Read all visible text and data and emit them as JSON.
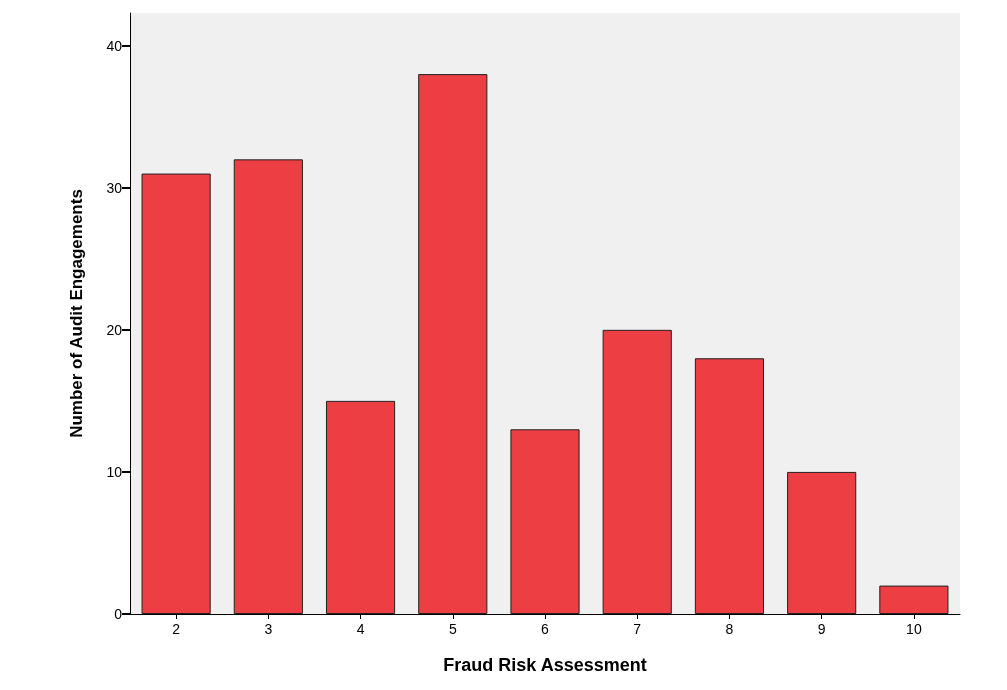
{
  "chart_data": {
    "type": "bar",
    "xlabel": "Fraud Risk Assessment",
    "ylabel": "Number of Audit Engagements",
    "categories": [
      "2",
      "3",
      "4",
      "5",
      "6",
      "7",
      "8",
      "9",
      "10"
    ],
    "values": [
      31,
      32,
      15,
      38,
      13,
      20,
      18,
      10,
      2
    ],
    "color": "#ec3e43",
    "ylim": [
      0,
      42.3
    ],
    "yticks": [
      0,
      10,
      20,
      30,
      40
    ],
    "grid": false
  }
}
